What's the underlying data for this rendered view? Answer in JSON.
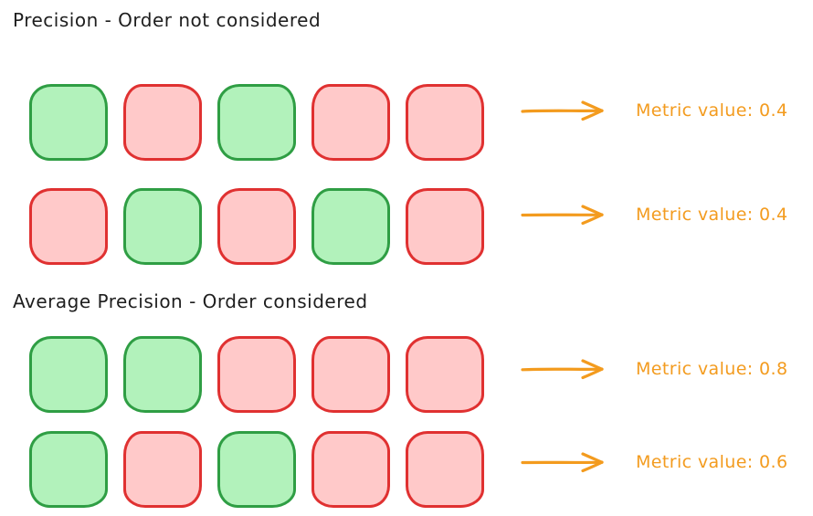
{
  "colors": {
    "green_fill": "#b2f2bb",
    "green_stroke": "#2f9e44",
    "red_fill": "#ffc9c9",
    "red_stroke": "#e03131",
    "orange": "#f39b1e",
    "text": "#1e1e1e"
  },
  "icons": {
    "metric_arrow": "arrow-right-icon"
  },
  "sections": [
    {
      "title": "Precision - Order not considered",
      "rows": [
        {
          "boxes": [
            "green",
            "red",
            "green",
            "red",
            "red"
          ],
          "label": "Metric value: 0.4"
        },
        {
          "boxes": [
            "red",
            "green",
            "red",
            "green",
            "red"
          ],
          "label": "Metric value: 0.4"
        }
      ]
    },
    {
      "title": "Average Precision - Order considered",
      "rows": [
        {
          "boxes": [
            "green",
            "green",
            "red",
            "red",
            "red"
          ],
          "label": "Metric value: 0.8"
        },
        {
          "boxes": [
            "green",
            "red",
            "green",
            "red",
            "red"
          ],
          "label": "Metric value: 0.6"
        }
      ]
    }
  ]
}
